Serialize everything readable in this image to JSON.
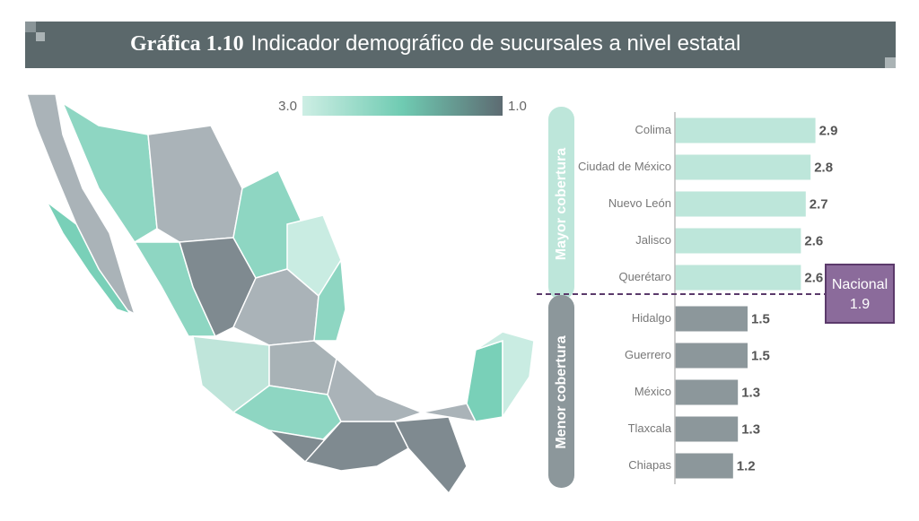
{
  "chart_data": {
    "type": "bar",
    "orientation": "horizontal",
    "title_prefix": "Gráfica 1.10",
    "title": "Indicador demográfico de sucursales a nivel estatal",
    "color_scale": {
      "colors": [
        "#cdeee4",
        "#6fcbb2",
        "#5d6b72"
      ],
      "ticks": [
        {
          "value": 3,
          "label": "3.0"
        },
        {
          "value": 1,
          "label": "1.0"
        }
      ]
    },
    "xlim": [
      0,
      3
    ],
    "groups": [
      {
        "label": "Mayor cobertura",
        "color": "#bde6da",
        "categories": [
          "Colima",
          "Ciudad de México",
          "Nuevo León",
          "Jalisco",
          "Querétaro"
        ],
        "values": [
          2.9,
          2.8,
          2.7,
          2.6,
          2.6
        ]
      },
      {
        "label": "Menor cobertura",
        "color": "#8c979b",
        "categories": [
          "Hidalgo",
          "Guerrero",
          "México",
          "Tlaxcala",
          "Chiapas"
        ],
        "values": [
          1.5,
          1.5,
          1.3,
          1.3,
          1.2
        ]
      }
    ],
    "reference": {
      "label": "Nacional",
      "value": 1.9,
      "color": "#8b6b9b"
    }
  }
}
